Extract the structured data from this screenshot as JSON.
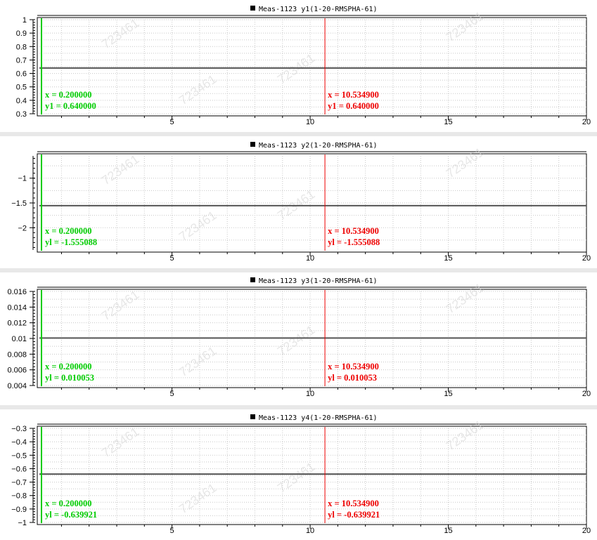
{
  "chart_data": [
    {
      "type": "line",
      "title": "Meas-1123 y1(1-20-RMSPHA-61)",
      "xlim": [
        0.2,
        20
      ],
      "ylim": [
        0.3,
        1.0
      ],
      "xticks": [
        5,
        10,
        15,
        20
      ],
      "yticks": [
        0.3,
        0.4,
        0.5,
        0.6,
        0.7,
        0.8,
        0.9,
        1
      ],
      "ytick_labels": [
        "0.3",
        "0.4",
        "0.5",
        "0.6",
        "0.7",
        "0.8",
        "0.9",
        "1"
      ],
      "series": [
        {
          "x": [
            0.2,
            20
          ],
          "values": [
            0.64,
            0.64
          ],
          "color": "#555555"
        }
      ],
      "cursors": [
        {
          "x": 0.2,
          "color": "#00cc00",
          "x_text": "x = 0.200000",
          "y_text": "y1 = 0.640000"
        },
        {
          "x": 10.5349,
          "color": "#ee0000",
          "x_text": "x = 10.534900",
          "y_text": "y1 = 0.640000"
        }
      ],
      "grid": true
    },
    {
      "type": "line",
      "title": "Meas-1123 y2(1-20-RMSPHA-61)",
      "xlim": [
        0.2,
        20
      ],
      "ylim": [
        -2.45,
        -0.55
      ],
      "xticks": [
        5,
        10,
        15,
        20
      ],
      "yticks": [
        -2,
        -1.5,
        -1
      ],
      "ytick_labels": [
        "−2",
        "−1.5",
        "−1"
      ],
      "series": [
        {
          "x": [
            0.2,
            20
          ],
          "values": [
            -1.555088,
            -1.555088
          ],
          "color": "#555555"
        }
      ],
      "cursors": [
        {
          "x": 0.2,
          "color": "#00cc00",
          "x_text": "x = 0.200000",
          "y_text": "yl = -1.555088"
        },
        {
          "x": 10.5349,
          "color": "#ee0000",
          "x_text": "x = 10.534900",
          "y_text": "yl = -1.555088"
        }
      ],
      "grid": true
    },
    {
      "type": "line",
      "title": "Meas-1123 y3(1-20-RMSPHA-61)",
      "xlim": [
        0.2,
        20
      ],
      "ylim": [
        0.004,
        0.016
      ],
      "xticks": [
        5,
        10,
        15,
        20
      ],
      "yticks": [
        0.004,
        0.006,
        0.008,
        0.01,
        0.012,
        0.014,
        0.016
      ],
      "ytick_labels": [
        "0.004",
        "0.006",
        "0.008",
        "0.01",
        "0.012",
        "0.014",
        "0.016"
      ],
      "series": [
        {
          "x": [
            0.2,
            20
          ],
          "values": [
            0.010053,
            0.010053
          ],
          "color": "#555555"
        }
      ],
      "cursors": [
        {
          "x": 0.2,
          "color": "#00cc00",
          "x_text": "x = 0.200000",
          "y_text": "yl = 0.010053"
        },
        {
          "x": 10.5349,
          "color": "#ee0000",
          "x_text": "x = 10.534900",
          "y_text": "yl = 0.010053"
        }
      ],
      "grid": true
    },
    {
      "type": "line",
      "title": "Meas-1123 y4(1-20-RMSPHA-61)",
      "xlim": [
        0.2,
        20
      ],
      "ylim": [
        -1.0,
        -0.3
      ],
      "xticks": [
        5,
        10,
        15,
        20
      ],
      "yticks": [
        -1,
        -0.9,
        -0.8,
        -0.7,
        -0.6,
        -0.5,
        -0.4,
        -0.3
      ],
      "ytick_labels": [
        "−1",
        "−0.9",
        "−0.8",
        "−0.7",
        "−0.6",
        "−0.5",
        "−0.4",
        "−0.3"
      ],
      "series": [
        {
          "x": [
            0.2,
            20
          ],
          "values": [
            -0.639921,
            -0.639921
          ],
          "color": "#555555"
        }
      ],
      "cursors": [
        {
          "x": 0.2,
          "color": "#00cc00",
          "x_text": "x = 0.200000",
          "y_text": "yl = -0.639921"
        },
        {
          "x": 10.5349,
          "color": "#ee0000",
          "x_text": "x = 10.534900",
          "y_text": "yl = -0.639921"
        }
      ],
      "grid": true
    }
  ],
  "watermark_text": "723461"
}
